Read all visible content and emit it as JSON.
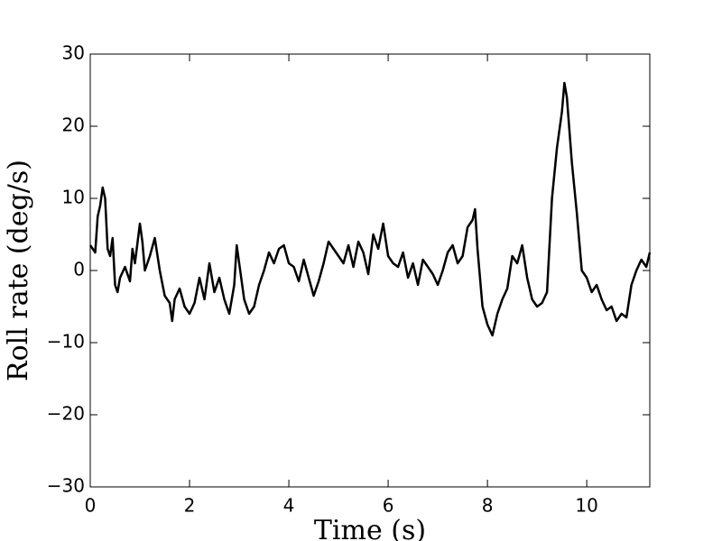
{
  "chart_data": {
    "type": "line",
    "x_label": "Time (s)",
    "y_label": "Roll rate (deg/s)",
    "x": [
      0.0,
      0.1,
      0.15,
      0.2,
      0.25,
      0.3,
      0.35,
      0.4,
      0.45,
      0.5,
      0.55,
      0.6,
      0.7,
      0.8,
      0.85,
      0.9,
      1.0,
      1.05,
      1.1,
      1.2,
      1.3,
      1.4,
      1.5,
      1.6,
      1.65,
      1.7,
      1.8,
      1.9,
      2.0,
      2.1,
      2.2,
      2.3,
      2.4,
      2.5,
      2.6,
      2.7,
      2.8,
      2.9,
      2.95,
      3.0,
      3.1,
      3.2,
      3.3,
      3.4,
      3.5,
      3.6,
      3.7,
      3.8,
      3.9,
      4.0,
      4.1,
      4.2,
      4.3,
      4.4,
      4.5,
      4.6,
      4.7,
      4.8,
      4.9,
      5.0,
      5.1,
      5.2,
      5.3,
      5.4,
      5.5,
      5.6,
      5.7,
      5.8,
      5.9,
      6.0,
      6.1,
      6.2,
      6.3,
      6.4,
      6.5,
      6.6,
      6.7,
      6.8,
      6.9,
      7.0,
      7.1,
      7.2,
      7.3,
      7.4,
      7.5,
      7.6,
      7.7,
      7.75,
      7.8,
      7.9,
      8.0,
      8.1,
      8.2,
      8.3,
      8.4,
      8.5,
      8.6,
      8.7,
      8.8,
      8.9,
      9.0,
      9.1,
      9.2,
      9.3,
      9.4,
      9.5,
      9.55,
      9.6,
      9.7,
      9.8,
      9.9,
      10.0,
      10.1,
      10.2,
      10.3,
      10.4,
      10.5,
      10.6,
      10.7,
      10.8,
      10.9,
      11.0,
      11.1,
      11.2,
      11.27
    ],
    "series": [
      {
        "color": "#000000",
        "values": [
          3.5,
          2.5,
          7.5,
          9,
          11.5,
          10,
          3,
          2,
          4.5,
          -2,
          -3,
          -1,
          0.5,
          -1.5,
          3,
          1,
          6.5,
          4,
          0,
          2,
          4.5,
          0,
          -3.5,
          -4.5,
          -7,
          -4,
          -2.5,
          -5,
          -6,
          -4.5,
          -1,
          -4,
          1,
          -3,
          -1,
          -4,
          -6,
          -2,
          3.5,
          1,
          -4,
          -6,
          -5,
          -2,
          0,
          2.5,
          1,
          3,
          3.5,
          1,
          0.5,
          -1.5,
          1.5,
          -1,
          -3.5,
          -1.5,
          1,
          4,
          3,
          2,
          1,
          3.5,
          0.5,
          4,
          2.5,
          -0.5,
          5,
          3,
          6.5,
          2,
          1,
          0.5,
          2.5,
          -1,
          1,
          -2,
          1.5,
          0.5,
          -0.5,
          -2,
          0,
          2.5,
          3.5,
          1,
          2,
          6,
          7,
          8.5,
          3,
          -5,
          -7.5,
          -9,
          -6,
          -4,
          -2.5,
          2,
          1,
          3.5,
          -1,
          -4,
          -5,
          -4.5,
          -3,
          10,
          17,
          22,
          26,
          24,
          15,
          8,
          0,
          -1,
          -3,
          -2,
          -4,
          -5.5,
          -5,
          -7,
          -6,
          -6.5,
          -2,
          0,
          1.5,
          0.5,
          2.5
        ]
      }
    ],
    "xlim": [
      0,
      11.27
    ],
    "ylim": [
      -30,
      30
    ],
    "xticks": [
      0,
      2,
      4,
      6,
      8,
      10
    ],
    "yticks": [
      {
        "value": -30,
        "label": "−30"
      },
      {
        "value": -20,
        "label": "−20"
      },
      {
        "value": -10,
        "label": "−10"
      },
      0,
      10,
      20,
      30
    ],
    "grid": false
  }
}
